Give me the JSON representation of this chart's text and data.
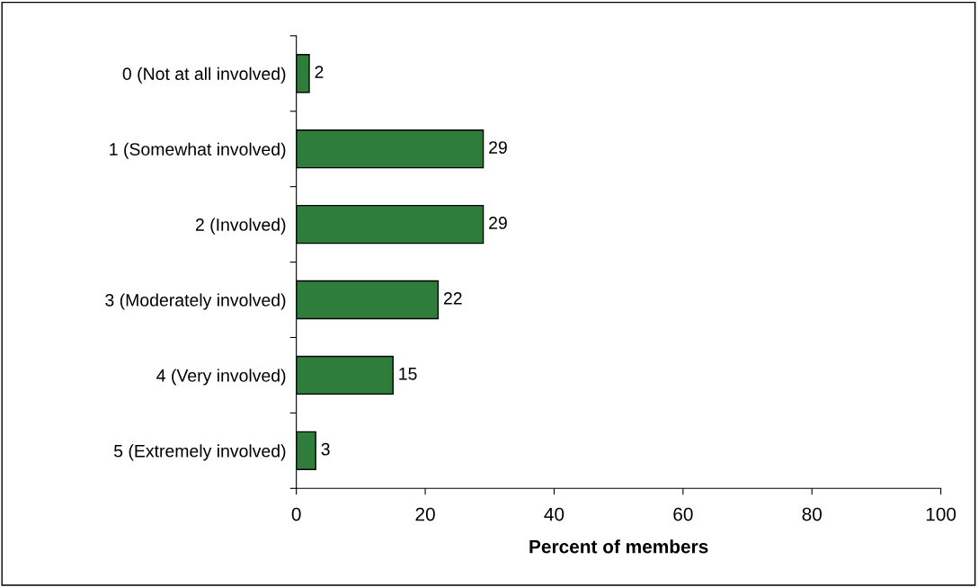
{
  "chart_data": {
    "type": "bar",
    "orientation": "horizontal",
    "xlabel": "Percent of members",
    "categories": [
      "0 (Not at all involved)",
      "1 (Somewhat involved)",
      "2 (Involved)",
      "3 (Moderately involved)",
      "4 (Very involved)",
      "5 (Extremely involved)"
    ],
    "values": [
      2,
      29,
      29,
      22,
      15,
      3
    ],
    "color": "#2e7d3a",
    "xlim": [
      0,
      100
    ],
    "xticks": [
      0,
      20,
      40,
      60,
      80,
      100
    ],
    "grid": false,
    "data_labels": true
  }
}
